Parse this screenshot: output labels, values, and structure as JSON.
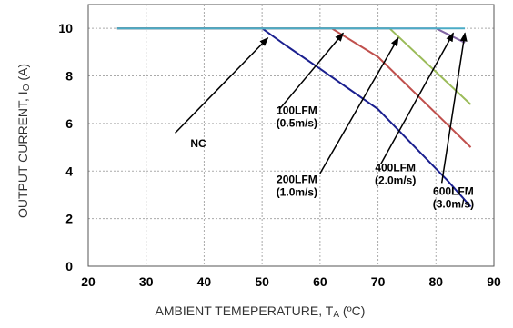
{
  "chart_data": {
    "type": "line",
    "xlabel": {
      "main": "AMBIENT TEMEPERATURE, T",
      "sub": "A",
      "unit": " (ºC)"
    },
    "ylabel": {
      "main": "OUTPUT CURRENT, I",
      "sub": "O",
      "unit": " (A)"
    },
    "xlim": [
      20,
      90
    ],
    "ylim": [
      0,
      11
    ],
    "x_ticks": [
      20,
      30,
      40,
      50,
      60,
      70,
      80,
      90
    ],
    "y_ticks": [
      0,
      2,
      4,
      6,
      8,
      10
    ],
    "grid": true,
    "legend": "none",
    "series": [
      {
        "color": "#1a1f8f",
        "points": [
          [
            25,
            10
          ],
          [
            50,
            10
          ],
          [
            54,
            9.3
          ],
          [
            60,
            8.3
          ],
          [
            70,
            6.6
          ],
          [
            82,
            3.6
          ],
          [
            86,
            2.5
          ]
        ]
      },
      {
        "color": "#c0504d",
        "points": [
          [
            25,
            10
          ],
          [
            62,
            10
          ],
          [
            70,
            8.8
          ],
          [
            86,
            5.0
          ]
        ]
      },
      {
        "color": "#9bbb59",
        "points": [
          [
            25,
            10
          ],
          [
            72,
            10
          ],
          [
            86,
            6.8
          ]
        ]
      },
      {
        "color": "#8064a2",
        "points": [
          [
            25,
            10
          ],
          [
            80,
            10
          ],
          [
            85,
            9.4
          ]
        ]
      },
      {
        "color": "#4bacc6",
        "points": [
          [
            25,
            10
          ],
          [
            85,
            10
          ]
        ]
      }
    ],
    "annotations": [
      {
        "lines": [
          "NC"
        ],
        "text_at": [
          39,
          5.0
        ],
        "arrow_from": [
          35,
          5.6
        ],
        "arrow_to": [
          51,
          9.6
        ]
      },
      {
        "lines": [
          "100LFM",
          "(0.5m/s)"
        ],
        "text_at": [
          56,
          6.4
        ],
        "arrow_from": [
          53,
          6.6
        ],
        "arrow_to": [
          64,
          9.8
        ]
      },
      {
        "lines": [
          "200LFM",
          "(1.0m/s)"
        ],
        "text_at": [
          56,
          3.5
        ],
        "arrow_from": [
          60,
          3.9
        ],
        "arrow_to": [
          73.5,
          9.6
        ]
      },
      {
        "lines": [
          "400LFM",
          "(2.0m/s)"
        ],
        "text_at": [
          73,
          4.0
        ],
        "arrow_from": [
          70.5,
          4.3
        ],
        "arrow_to": [
          83,
          9.8
        ]
      },
      {
        "lines": [
          "600LFM",
          "(3.0m/s)"
        ],
        "text_at": [
          83,
          3.0
        ],
        "arrow_from": [
          81,
          3.5
        ],
        "arrow_to": [
          85,
          9.8
        ]
      }
    ]
  }
}
